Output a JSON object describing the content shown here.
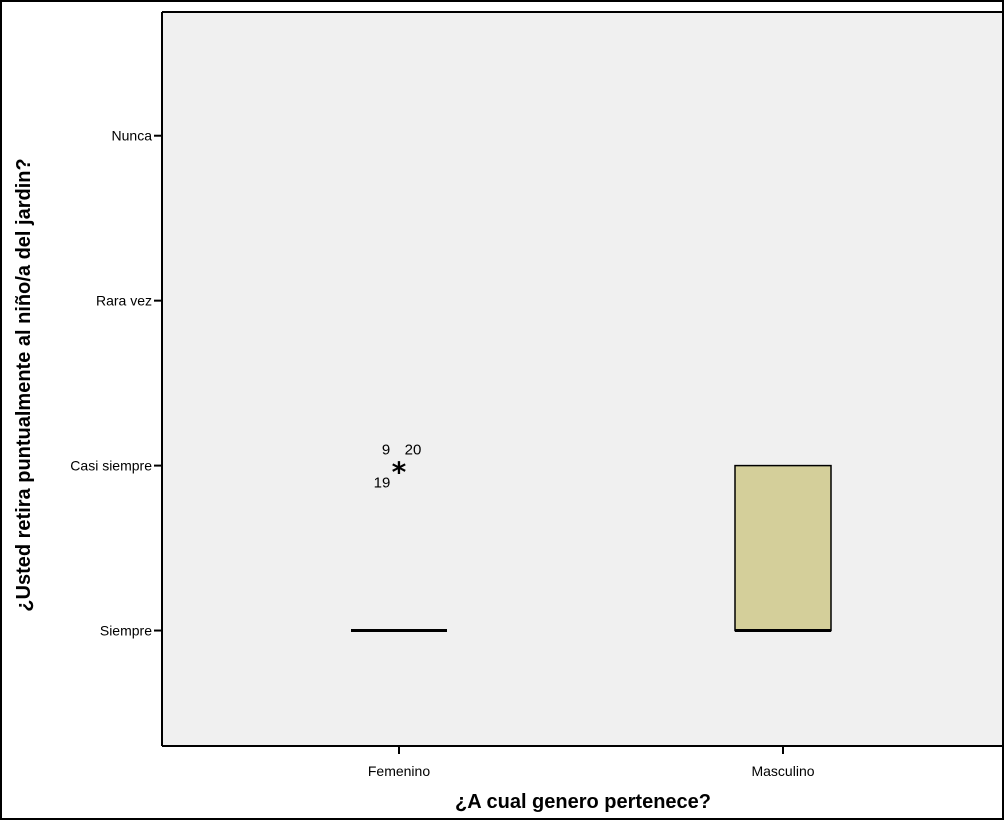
{
  "chart_data": {
    "type": "boxplot",
    "xlabel": "¿A cual genero pertenece?",
    "ylabel": "¿Usted retira puntualmente al niño/a del jardin?",
    "categories": [
      "Femenino",
      "Masculino"
    ],
    "y_levels": [
      "Siempre",
      "Casi siempre",
      "Rara vez",
      "Nunca"
    ],
    "y_values": [
      1,
      2,
      3,
      4
    ],
    "ylim": [
      0.3,
      4.75
    ],
    "boxes": [
      {
        "category": "Femenino",
        "min": 1,
        "q1": 1,
        "median": 1,
        "q3": 1,
        "max": 1,
        "outliers": [
          {
            "value": 2,
            "labels": [
              "9",
              "20",
              "19"
            ]
          }
        ]
      },
      {
        "category": "Masculino",
        "min": 1,
        "q1": 1,
        "median": 1,
        "q3": 2,
        "max": 2,
        "outliers": []
      }
    ],
    "outlier_symbol": "*",
    "grid": false,
    "legend": "none",
    "colors": {
      "plot_background": "#f0f0f0",
      "box_fill": "#d4cf9a",
      "line": "#000000"
    }
  }
}
